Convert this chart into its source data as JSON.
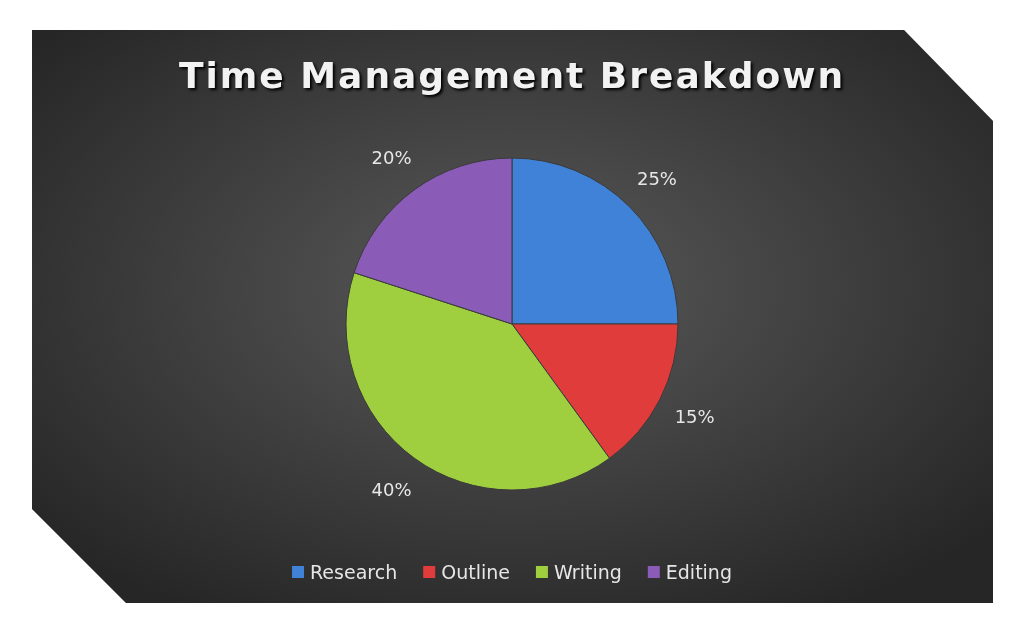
{
  "chart_data": {
    "type": "pie",
    "title": "Time Management Breakdown",
    "categories": [
      "Research",
      "Outline",
      "Writing",
      "Editing"
    ],
    "values": [
      25,
      15,
      40,
      20
    ],
    "colors": [
      "#3f82d8",
      "#e03c3c",
      "#9fcf3f",
      "#8a5cb8"
    ],
    "value_labels": [
      "25%",
      "15%",
      "40%",
      "20%"
    ],
    "legend": "bottom"
  }
}
